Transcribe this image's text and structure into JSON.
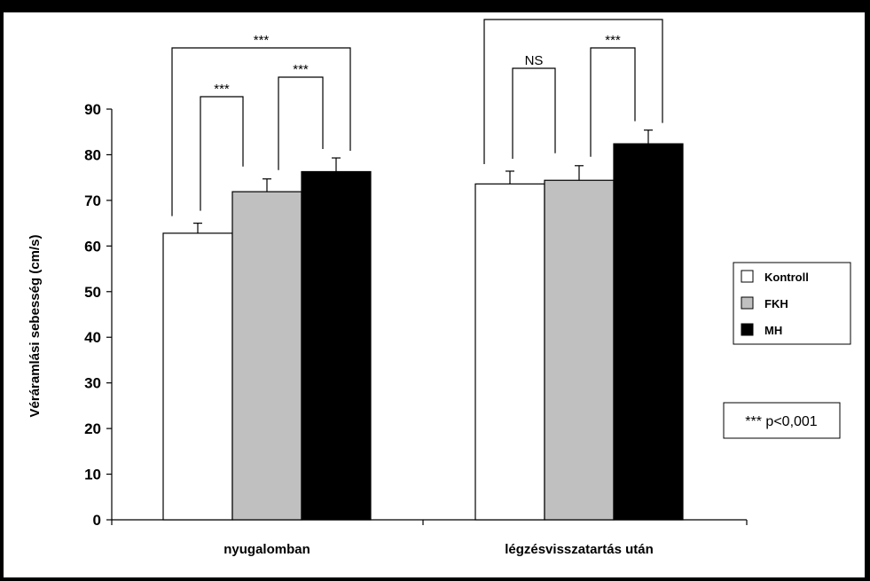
{
  "chart_data": {
    "type": "bar",
    "categories": [
      "nyugalomban",
      "légzésvisszatartás után"
    ],
    "series": [
      {
        "name": "Kontroll",
        "values": [
          62.8,
          73.6
        ],
        "errors": [
          2.2,
          2.8
        ],
        "color": "#ffffff"
      },
      {
        "name": "FKH",
        "values": [
          71.9,
          74.4
        ],
        "errors": [
          2.8,
          3.2
        ],
        "color": "#c0c0c0"
      },
      {
        "name": "MH",
        "values": [
          76.3,
          82.4
        ],
        "errors": [
          3.0,
          3.0
        ],
        "color": "#000000"
      }
    ],
    "ylabel": "Véráramlási sebesség (cm/s)",
    "xlabel": "",
    "ylim": [
      0,
      90
    ],
    "yticks": [
      0,
      10,
      20,
      30,
      40,
      50,
      60,
      70,
      80,
      90
    ],
    "legend_position": "right",
    "significance": [
      {
        "group": 0,
        "from": 0,
        "to": 2,
        "label": "***"
      },
      {
        "group": 0,
        "from": 0,
        "to": 1,
        "label": "***"
      },
      {
        "group": 0,
        "from": 1,
        "to": 2,
        "label": "***"
      },
      {
        "group": 1,
        "from": 0,
        "to": 2,
        "label": ""
      },
      {
        "group": 1,
        "from": 0,
        "to": 1,
        "label": "NS"
      },
      {
        "group": 1,
        "from": 1,
        "to": 2,
        "label": "***"
      }
    ],
    "note": "*** p<0,001"
  }
}
